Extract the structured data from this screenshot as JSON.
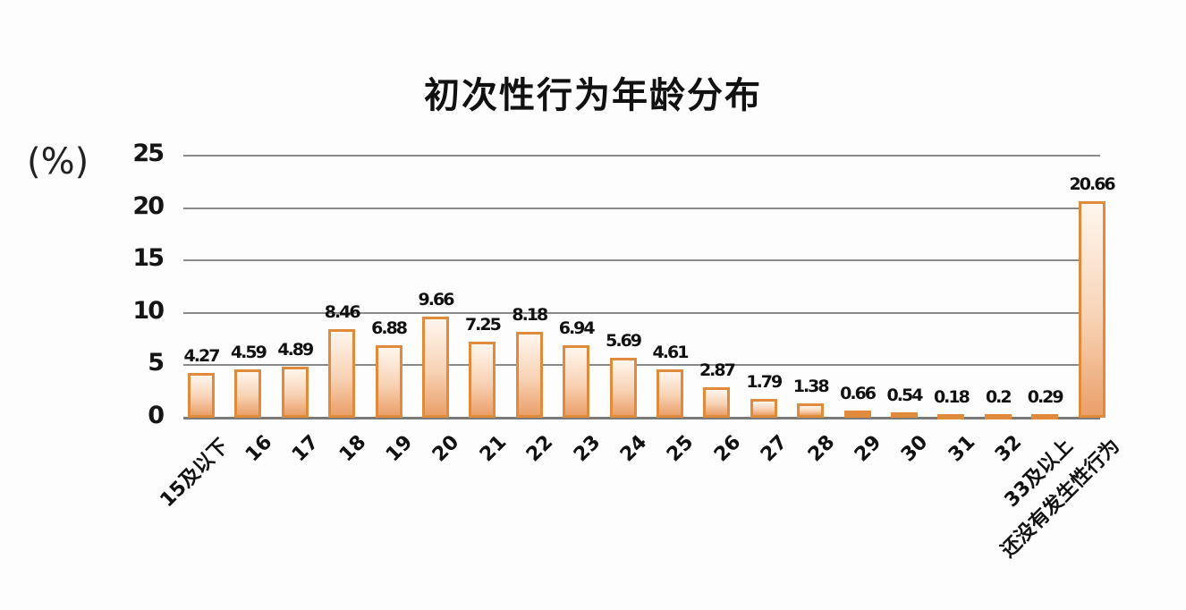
{
  "chart_data": {
    "type": "bar",
    "title": "初次性行为年龄分布",
    "xlabel": "",
    "ylabel": "(%)",
    "ylim": [
      0,
      25
    ],
    "yticks": [
      0,
      5,
      10,
      15,
      20,
      25
    ],
    "grid": true,
    "legend": null,
    "categories": [
      "15及以下",
      "16",
      "17",
      "18",
      "19",
      "20",
      "21",
      "22",
      "23",
      "24",
      "25",
      "26",
      "27",
      "28",
      "29",
      "30",
      "31",
      "32",
      "33及以上",
      "还没有发生性行为"
    ],
    "values": [
      4.27,
      4.59,
      4.89,
      8.46,
      6.88,
      9.66,
      7.25,
      8.18,
      6.94,
      5.69,
      4.61,
      2.87,
      1.79,
      1.38,
      0.66,
      0.54,
      0.18,
      0.2,
      0.29,
      20.66
    ],
    "value_labels": [
      "4.27",
      "4.59",
      "4.89",
      "8.46",
      "6.88",
      "9.66",
      "7.25",
      "8.18",
      "6.94",
      "5.69",
      "4.61",
      "2.87",
      "1.79",
      "1.38",
      "0.66",
      "0.54",
      "0.18",
      "0.2",
      "0.29",
      "20.66"
    ],
    "bar_color": "#e08a3c",
    "bar_fill_top": "#fff6ee",
    "bar_fill_bottom": "#eaa06a"
  },
  "title": "初次性行为年龄分布",
  "unit_label": "(%)",
  "yticks": [
    "25",
    "20",
    "15",
    "10",
    "5",
    "0"
  ]
}
